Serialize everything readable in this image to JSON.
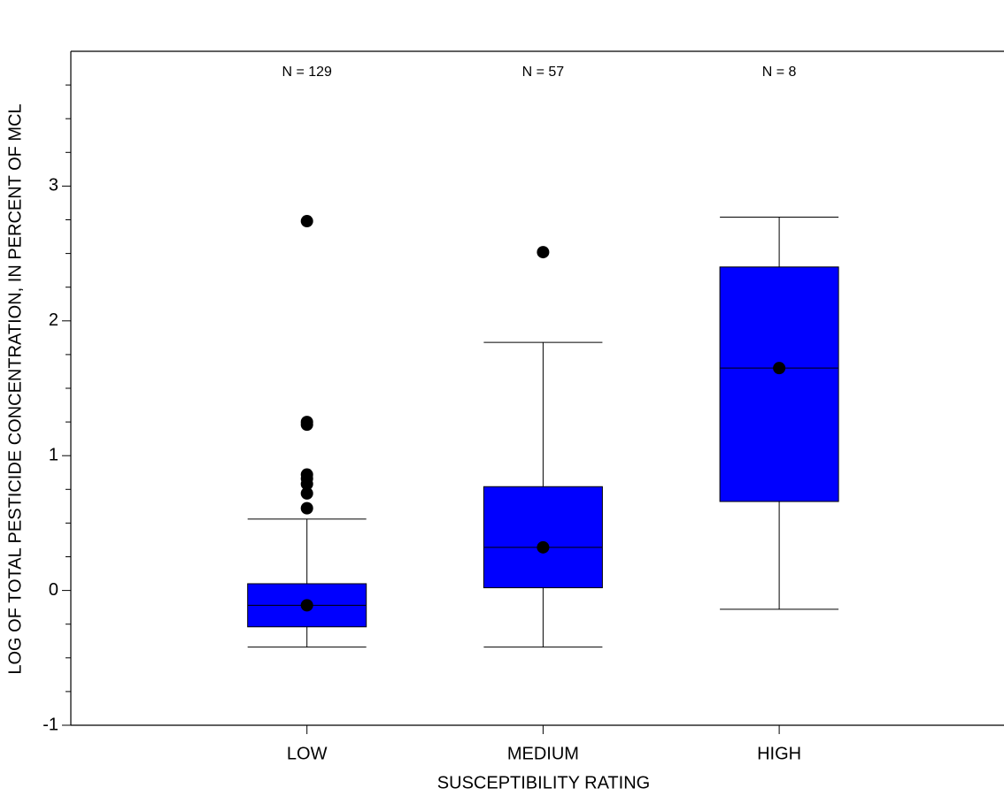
{
  "chart_data": {
    "type": "box",
    "x_label": "SUSCEPTIBILITY RATING",
    "y_label": "LOG OF TOTAL PESTICIDE CONCENTRATION, IN PERCENT OF MCL",
    "categories": [
      "LOW",
      "MEDIUM",
      "HIGH"
    ],
    "annotations": [
      "N = 129",
      "N = 57",
      "N = 8"
    ],
    "color": "#0000ff",
    "boxes": [
      {
        "whislo": -0.42,
        "q1": -0.27,
        "med": -0.11,
        "q3": 0.05,
        "whishi": 0.53,
        "mean": -0.11,
        "fliers": [
          2.74,
          1.25,
          1.23,
          0.86,
          0.83,
          0.79,
          0.72,
          0.61
        ]
      },
      {
        "whislo": -0.42,
        "q1": 0.02,
        "med": 0.32,
        "q3": 0.77,
        "whishi": 1.84,
        "mean": 0.32,
        "fliers": [
          2.51
        ]
      },
      {
        "whislo": -0.14,
        "q1": 0.66,
        "med": 1.65,
        "q3": 2.4,
        "whishi": 2.77,
        "mean": 1.65,
        "fliers": []
      }
    ],
    "ylim": [
      -1,
      4
    ],
    "yticks": [
      -1,
      0,
      1,
      2,
      3
    ],
    "minor_yticks": [
      -0.75,
      -0.5,
      -0.25,
      0.25,
      0.5,
      0.75,
      1.25,
      1.5,
      1.75,
      2.25,
      2.5,
      2.75,
      3.25,
      3.5,
      3.75
    ]
  }
}
